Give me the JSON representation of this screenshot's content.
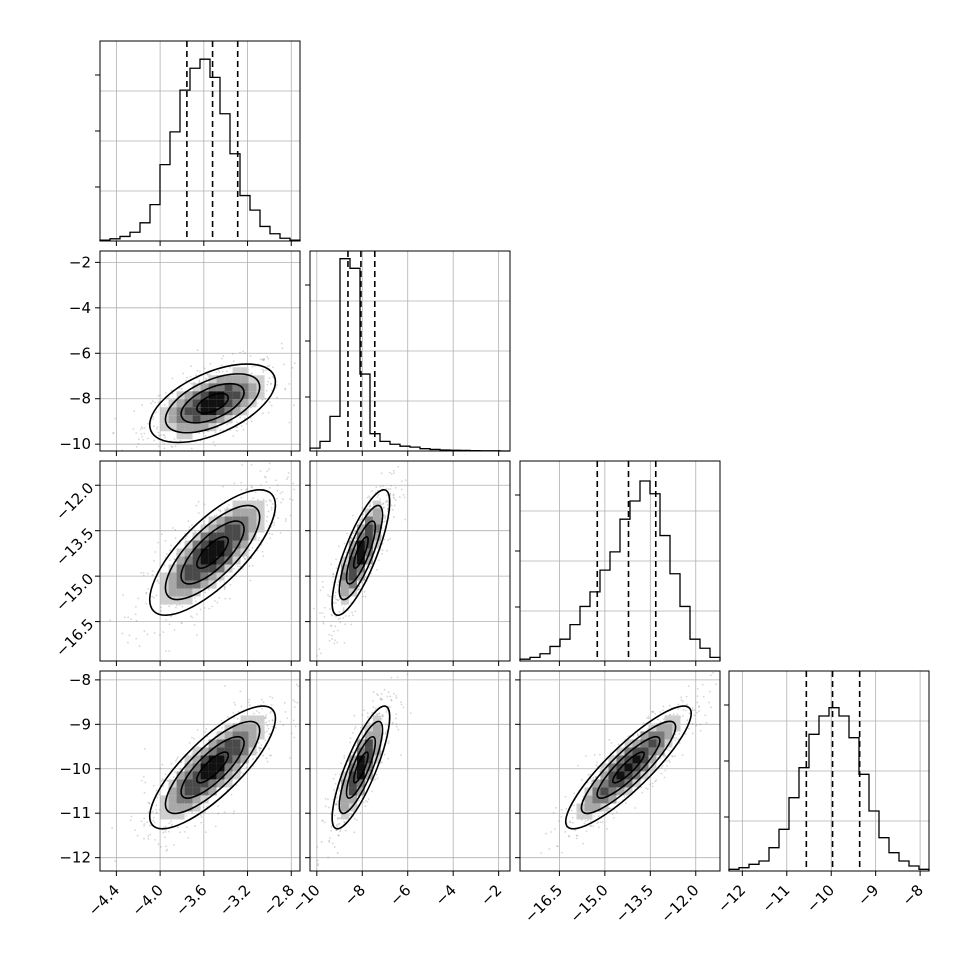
{
  "chart_data": {
    "type": "corner",
    "parameters": [
      {
        "lim": [
          -4.55,
          -2.72
        ],
        "ticks": [
          "-4.4",
          "-4.0",
          "-3.6",
          "-3.2",
          "-2.8"
        ],
        "tick_values": [
          -4.4,
          -4.0,
          -3.6,
          -3.2,
          -2.8
        ],
        "quantiles": [
          -3.755,
          -3.52,
          -3.29
        ],
        "hist": [
          0.005,
          0.012,
          0.025,
          0.048,
          0.1,
          0.2,
          0.42,
          0.6,
          0.83,
          0.95,
          1.0,
          0.9,
          0.7,
          0.48,
          0.25,
          0.17,
          0.08,
          0.04,
          0.015,
          0.005
        ],
        "hist_ymax": 1.1
      },
      {
        "lim": [
          -10.3,
          -1.5
        ],
        "ticks": [
          "-10",
          "-8",
          "-6",
          "-4",
          "-2"
        ],
        "tick_values": [
          -10,
          -8,
          -6,
          -4,
          -2
        ],
        "quantiles": [
          -8.63,
          -8.06,
          -7.45
        ],
        "hist": [
          0.015,
          0.05,
          0.18,
          1.0,
          0.95,
          0.4,
          0.09,
          0.05,
          0.035,
          0.025,
          0.02,
          0.012,
          0.008,
          0.005,
          0.004,
          0.003,
          0.002,
          0.001,
          0.001,
          0.0
        ],
        "hist_ymax": 1.04
      },
      {
        "lim": [
          -17.8,
          -11.2
        ],
        "ticks": [
          "-16.5",
          "-15.0",
          "-13.5",
          "-12.0"
        ],
        "tick_values": [
          -16.5,
          -15.0,
          -13.5,
          -12.0
        ],
        "quantiles": [
          -15.25,
          -14.22,
          -13.32
        ],
        "hist": [
          0.01,
          0.02,
          0.04,
          0.08,
          0.12,
          0.2,
          0.3,
          0.38,
          0.5,
          0.6,
          0.78,
          0.88,
          0.99,
          0.92,
          0.69,
          0.48,
          0.3,
          0.12,
          0.07,
          0.02
        ],
        "hist_ymax": 1.1
      },
      {
        "lim": [
          -12.3,
          -7.8
        ],
        "ticks": [
          "-12",
          "-11",
          "-10",
          "-9",
          "-8"
        ],
        "tick_values": [
          -12,
          -11,
          -10,
          -9,
          -8
        ],
        "quantiles": [
          -10.56,
          -9.97,
          -9.36
        ],
        "hist": [
          0.01,
          0.02,
          0.04,
          0.06,
          0.14,
          0.25,
          0.44,
          0.62,
          0.82,
          0.93,
          0.98,
          0.93,
          0.8,
          0.58,
          0.36,
          0.2,
          0.11,
          0.06,
          0.03,
          0.01
        ],
        "hist_ymax": 1.2
      }
    ],
    "pairs": [
      {
        "row": 1,
        "col": 0,
        "center": [
          -3.52,
          -8.2
        ],
        "sd": [
          0.25,
          0.75
        ],
        "rho": 0.55
      },
      {
        "row": 2,
        "col": 0,
        "center": [
          -3.52,
          -14.22
        ],
        "sd": [
          0.25,
          0.9
        ],
        "rho": 0.75
      },
      {
        "row": 2,
        "col": 1,
        "center": [
          -8.06,
          -14.22
        ],
        "sd": [
          0.55,
          0.9
        ],
        "rho": 0.8
      },
      {
        "row": 3,
        "col": 0,
        "center": [
          -3.52,
          -9.97
        ],
        "sd": [
          0.25,
          0.6
        ],
        "rho": 0.8
      },
      {
        "row": 3,
        "col": 1,
        "center": [
          -8.06,
          -9.97
        ],
        "sd": [
          0.55,
          0.6
        ],
        "rho": 0.82
      },
      {
        "row": 3,
        "col": 2,
        "center": [
          -14.22,
          -9.97
        ],
        "sd": [
          0.9,
          0.6
        ],
        "rho": 0.88
      }
    ],
    "grid": true,
    "contour_levels": [
      0.5,
      1.0,
      1.5,
      2.0
    ]
  }
}
